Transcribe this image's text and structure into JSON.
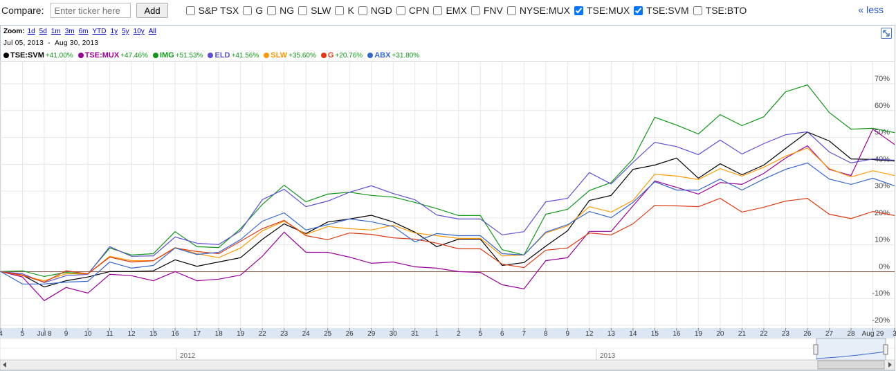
{
  "toolbar": {
    "compare_label": "Compare:",
    "input_placeholder": "Enter ticker here",
    "add_button": "Add",
    "tickers": [
      {
        "label": "S&P TSX",
        "checked": false
      },
      {
        "label": "G",
        "checked": false
      },
      {
        "label": "NG",
        "checked": false
      },
      {
        "label": "SLW",
        "checked": false
      },
      {
        "label": "K",
        "checked": false
      },
      {
        "label": "NGD",
        "checked": false
      },
      {
        "label": "CPN",
        "checked": false
      },
      {
        "label": "EMX",
        "checked": false
      },
      {
        "label": "FNV",
        "checked": false
      },
      {
        "label": "NYSE:MUX",
        "checked": false
      },
      {
        "label": "TSE:MUX",
        "checked": true
      },
      {
        "label": "TSE:SVM",
        "checked": true
      },
      {
        "label": "TSE:BTO",
        "checked": false
      }
    ],
    "less_link": "« less"
  },
  "zoom": {
    "label": "Zoom:",
    "options": [
      "1d",
      "5d",
      "1m",
      "3m",
      "6m",
      "YTD",
      "1y",
      "5y",
      "10y",
      "All"
    ]
  },
  "date_range": {
    "start": "Jul 05, 2013",
    "separator": "-",
    "end": "Aug 30, 2013"
  },
  "navigator": {
    "years": [
      "2012",
      "2013"
    ]
  },
  "chart_data": {
    "type": "line",
    "categories": [
      "4",
      "5",
      "Jul 8",
      "9",
      "10",
      "11",
      "12",
      "15",
      "16",
      "17",
      "18",
      "19",
      "22",
      "23",
      "24",
      "25",
      "26",
      "29",
      "30",
      "31",
      "1",
      "2",
      "5",
      "6",
      "7",
      "8",
      "9",
      "12",
      "13",
      "14",
      "15",
      "16",
      "19",
      "20",
      "21",
      "22",
      "23",
      "26",
      "27",
      "28",
      "Aug 29",
      "3"
    ],
    "series": [
      {
        "name": "TSE:SVM",
        "change": "+41.00%",
        "color": "#000000",
        "values": [
          0,
          -1.3,
          -5.7,
          -3.4,
          -2,
          0,
          0,
          0.3,
          4.4,
          2,
          3.6,
          5.2,
          12,
          17.8,
          14.2,
          18.5,
          19.6,
          21,
          18.5,
          14.7,
          9.3,
          12.1,
          12.1,
          2.3,
          3.4,
          9.5,
          15.2,
          26.5,
          28.4,
          38.1,
          39.7,
          42.3,
          34.8,
          40.2,
          36.1,
          39.7,
          45.9,
          52,
          48.7,
          42,
          41.8,
          41.2
        ]
      },
      {
        "name": "TSE:MUX",
        "change": "+47.46%",
        "color": "#990099",
        "values": [
          0,
          -2,
          -10.8,
          -5.9,
          -8,
          -1,
          -1.5,
          -3.4,
          0,
          -3.4,
          -2.8,
          -1.3,
          5.7,
          14.7,
          7.2,
          7.2,
          5.4,
          3.1,
          3.6,
          1.8,
          1.3,
          0,
          -0.3,
          -4.9,
          -6.4,
          4.1,
          5.2,
          15,
          15,
          24.5,
          33.8,
          31.4,
          28.9,
          33.2,
          32.5,
          36.6,
          42.3,
          46.9,
          38.1,
          35.8,
          53.1,
          47.4
        ]
      },
      {
        "name": "IMG",
        "change": "+51.53%",
        "color": "#109618",
        "values": [
          0,
          0.3,
          -1.8,
          -0.3,
          -0.8,
          8.8,
          6.2,
          6.7,
          14.9,
          9.3,
          9,
          16,
          25,
          32.2,
          26,
          28.9,
          29.6,
          28.4,
          27.8,
          25.8,
          23.5,
          20.9,
          20.9,
          8.2,
          6.2,
          21.4,
          23.2,
          30.2,
          33.2,
          42,
          57.5,
          54.6,
          51.3,
          58.5,
          54.4,
          57.7,
          67,
          69.6,
          59.3,
          53.1,
          53.4,
          51.8
        ]
      },
      {
        "name": "ELD",
        "change": "+41.56%",
        "color": "#5c4fcf",
        "values": [
          0,
          -0.8,
          -4.1,
          -1.5,
          -1,
          9.3,
          5.7,
          5.9,
          12.9,
          10.6,
          10.1,
          15.2,
          26.8,
          30.7,
          24.2,
          26.3,
          29.6,
          32,
          29.1,
          26.8,
          21.1,
          19.6,
          19.6,
          13.7,
          14.9,
          26,
          27.3,
          36.9,
          32.7,
          40.7,
          48.2,
          46.6,
          43.6,
          49,
          43.8,
          47.7,
          51,
          52.1,
          44.6,
          40.5,
          42,
          41.5
        ]
      },
      {
        "name": "SLW",
        "change": "+35.60%",
        "color": "#ff9900",
        "values": [
          0,
          -1.5,
          -3.4,
          -0.8,
          -0.8,
          5.7,
          4.1,
          4.1,
          9,
          6.7,
          5.2,
          8.8,
          15.2,
          18.8,
          13.9,
          16.8,
          16,
          15.5,
          17.3,
          14.4,
          13.4,
          12.4,
          12.4,
          5.9,
          6.2,
          14.4,
          17,
          24.2,
          22.2,
          26.5,
          36.3,
          35.6,
          34.3,
          38.4,
          35.6,
          38.9,
          43,
          46.1,
          38.4,
          35.3,
          37.6,
          35.8
        ]
      },
      {
        "name": "G",
        "change": "+20.76%",
        "color": "#dc3912",
        "values": [
          0,
          -1.3,
          -3.9,
          0.3,
          -0.8,
          5.4,
          3.6,
          4.1,
          8.8,
          7.5,
          6.7,
          11.3,
          16,
          19.1,
          13.4,
          11.9,
          14.4,
          13.9,
          12.6,
          12.1,
          10.6,
          8.5,
          8.5,
          2.8,
          1.5,
          8,
          8.8,
          14.4,
          13.7,
          17.8,
          24.7,
          24.5,
          24.2,
          27.3,
          22.2,
          24,
          26.3,
          27.3,
          21.4,
          19.8,
          22.4,
          20.9
        ]
      },
      {
        "name": "ABX",
        "change": "+31.80%",
        "color": "#3366cc",
        "values": [
          0,
          -4.6,
          -4.6,
          -3.9,
          -3.6,
          3.6,
          1.3,
          2.3,
          8.8,
          6.4,
          7.2,
          11.9,
          18.8,
          21.9,
          15.5,
          17.5,
          19.6,
          18.6,
          16.8,
          11.1,
          14.2,
          13.4,
          13.4,
          6.7,
          6.2,
          14.7,
          17.5,
          22.4,
          20.1,
          25.8,
          33.5,
          30.4,
          30.4,
          34.5,
          30.4,
          34.5,
          38.1,
          40.5,
          34.5,
          32.5,
          34.8,
          32
        ]
      }
    ],
    "ylim": [
      -20,
      78
    ],
    "yticks": [
      {
        "value": -20,
        "label": "-20%"
      },
      {
        "value": -10,
        "label": "-10%"
      },
      {
        "value": 0,
        "label": "0%"
      },
      {
        "value": 10,
        "label": "10%"
      },
      {
        "value": 20,
        "label": "20%"
      },
      {
        "value": 30,
        "label": "30%"
      },
      {
        "value": 40,
        "label": "40%"
      },
      {
        "value": 50,
        "label": "50%"
      },
      {
        "value": 60,
        "label": "60%"
      },
      {
        "value": 70,
        "label": "70%"
      }
    ],
    "grid": true
  }
}
